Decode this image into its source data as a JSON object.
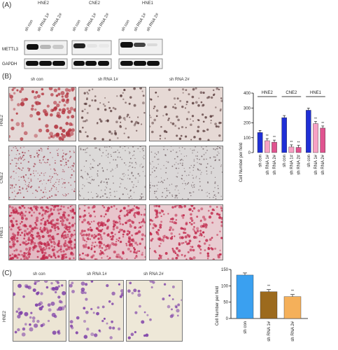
{
  "panels": {
    "a": {
      "letter": "(A)",
      "groups": [
        "HNE2",
        "CNE2",
        "HNE1"
      ],
      "lanes": [
        "sh con",
        "sh RNA  1#",
        "sh RNA  2#"
      ],
      "rows": [
        "METTL3",
        "GAPDH"
      ]
    },
    "b": {
      "letter": "(B)",
      "col_labels": [
        "sh con",
        "sh RNA  1#",
        "sh RNA  2#"
      ],
      "row_labels": [
        "HNE2",
        "CNE2",
        "HNE1"
      ]
    },
    "c": {
      "letter": "(C)",
      "col_labels": [
        "sh con",
        "sh RNA  1#",
        "sh RNA  2#"
      ],
      "row_label": "HNE2"
    }
  },
  "colors": {
    "blue": "#1f2fd6",
    "pink": "#f7a1c4",
    "hotpink": "#e0538f",
    "skyblue": "#3aa0f0",
    "brown": "#9c6a1d",
    "orange": "#f5b05a"
  },
  "chart_data": [
    {
      "type": "bar",
      "ylabel": "Cell Number per field",
      "ylim": [
        0,
        400
      ],
      "yticks": [
        0,
        100,
        200,
        300,
        400
      ],
      "groups": [
        "HNE2",
        "CNE2",
        "HNE1"
      ],
      "categories": [
        "sh con",
        "sh RNA  1#",
        "sh RNA  2#",
        "sh con",
        "sh RNA  1#",
        "sh RNA  2#",
        "sh con",
        "sh RNA  1#",
        "sh RNA  2#"
      ],
      "values": [
        135,
        80,
        70,
        235,
        38,
        35,
        285,
        195,
        165
      ],
      "annotations": [
        "",
        "**",
        "**",
        "",
        "**",
        "**",
        "",
        "**",
        "**"
      ]
    },
    {
      "type": "bar",
      "ylabel": "Cell Number per field",
      "ylim": [
        0,
        150
      ],
      "yticks": [
        0,
        50,
        100,
        150
      ],
      "categories": [
        "sh con",
        "sh RNA  1#",
        "sh RNA  2#"
      ],
      "values": [
        133,
        82,
        67
      ],
      "annotations": [
        "",
        "**",
        "**"
      ]
    }
  ]
}
